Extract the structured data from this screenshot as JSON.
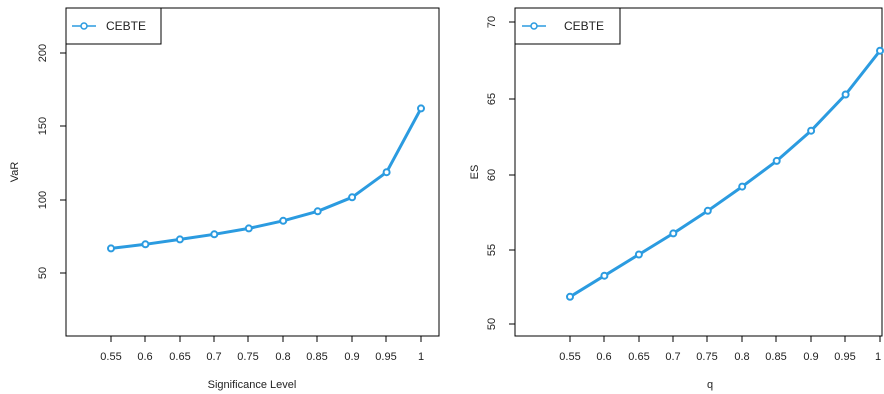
{
  "colors": {
    "series": "#2b9be0",
    "axis": "#000000"
  },
  "chart_data": [
    {
      "type": "line",
      "xlabel": "Significance Level",
      "ylabel": "VaR",
      "x_ticks": [
        "0.55",
        "0.6",
        "0.65",
        "0.7",
        "0.75",
        "0.8",
        "0.85",
        "0.9",
        "0.95",
        "1"
      ],
      "y_ticks": [
        50,
        100,
        150,
        200
      ],
      "xlim": [
        0.5,
        1.0
      ],
      "ylim": [
        20,
        225
      ],
      "legend": {
        "position": "top-left"
      },
      "grid": false,
      "series": [
        {
          "name": "CEBTE",
          "x": [
            0.55,
            0.6,
            0.65,
            0.7,
            0.75,
            0.8,
            0.85,
            0.9,
            0.95,
            1.0
          ],
          "values": [
            66.8,
            69.6,
            72.9,
            76.4,
            80.4,
            85.6,
            92.1,
            101.6,
            118.7,
            162.2
          ]
        }
      ]
    },
    {
      "type": "line",
      "xlabel": "q",
      "ylabel": "ES",
      "x_ticks": [
        "0.55",
        "0.6",
        "0.65",
        "0.7",
        "0.75",
        "0.8",
        "0.85",
        "0.9",
        "0.95",
        "1"
      ],
      "y_ticks": [
        50,
        55,
        60,
        65,
        70
      ],
      "xlim": [
        0.5,
        1.0
      ],
      "ylim": [
        49.3,
        70.7
      ],
      "legend": {
        "position": "top-left"
      },
      "grid": false,
      "series": [
        {
          "name": "CEBTE",
          "x": [
            0.55,
            0.6,
            0.65,
            0.7,
            0.75,
            0.8,
            0.85,
            0.9,
            0.95,
            1.0
          ],
          "values": [
            51.8,
            53.2,
            54.6,
            56.0,
            57.5,
            59.1,
            60.8,
            62.8,
            65.2,
            68.1
          ]
        }
      ]
    }
  ]
}
